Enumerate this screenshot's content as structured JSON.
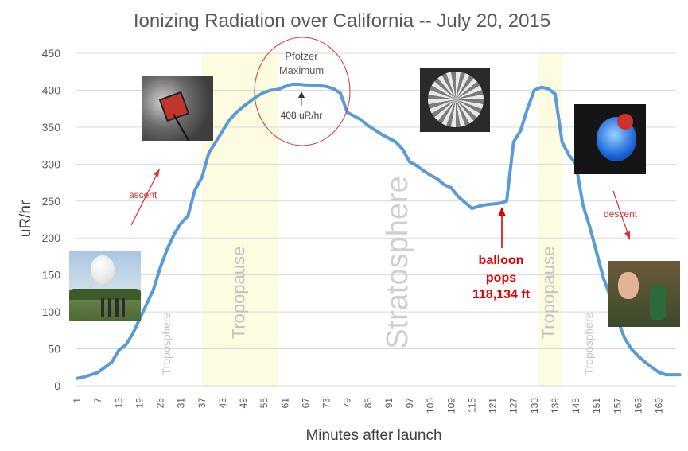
{
  "chart_data": {
    "type": "line",
    "title": "Ionizing Radiation over California -- July 20, 2015",
    "xlabel": "Minutes after launch",
    "ylabel": "uR/hr",
    "ylim": [
      0,
      450
    ],
    "yticks": [
      "0",
      "50",
      "100",
      "150",
      "200",
      "250",
      "300",
      "350",
      "400",
      "450"
    ],
    "xticks": [
      "1",
      "7",
      "13",
      "19",
      "25",
      "31",
      "37",
      "43",
      "49",
      "55",
      "61",
      "67",
      "73",
      "79",
      "85",
      "91",
      "97",
      "103",
      "109",
      "115",
      "121",
      "127",
      "133",
      "139",
      "145",
      "151",
      "157",
      "163",
      "169"
    ],
    "xlim": [
      1,
      175
    ],
    "grid": true,
    "line_color": "#5B9BD5",
    "regions": [
      {
        "label": "Troposphere",
        "x": 27,
        "fill": false
      },
      {
        "label": "Tropopause",
        "from": 37,
        "to": 59,
        "fill": true
      },
      {
        "label": "Stratosphere",
        "x": 94,
        "fill": false
      },
      {
        "label": "Tropopause",
        "from": 134,
        "to": 141,
        "fill": true
      },
      {
        "label": "Troposphere",
        "x": 149,
        "fill": false
      }
    ],
    "annotations": {
      "pfotzer_line1": "Pfotzer",
      "pfotzer_line2": "Maximum",
      "peak_value": "408 uR/hr",
      "ascent": "ascent",
      "descent": "descent",
      "pops_line1": "balloon",
      "pops_line2": "pops",
      "pops_line3": "118,134 ft"
    },
    "series": [
      {
        "x": [
          1,
          3,
          5,
          7,
          9,
          11,
          13,
          15,
          17,
          19,
          21,
          23,
          25,
          27,
          29,
          31,
          33,
          35,
          37,
          39,
          41,
          43,
          45,
          47,
          49,
          51,
          53,
          55,
          57,
          59,
          61,
          63,
          65,
          67,
          69,
          71,
          73,
          75,
          77,
          79,
          81,
          83,
          85,
          87,
          89,
          91,
          93,
          95,
          97,
          99,
          101,
          103,
          105,
          107,
          109,
          111,
          113,
          115,
          117,
          119,
          121,
          123,
          125,
          127,
          129,
          131,
          133,
          135,
          137,
          139,
          141,
          143,
          145,
          147,
          149,
          151,
          153,
          155,
          157,
          159,
          161,
          163,
          165,
          167,
          169,
          171,
          173,
          175
        ],
        "values": [
          10,
          12,
          15,
          18,
          25,
          32,
          48,
          55,
          70,
          90,
          110,
          130,
          160,
          185,
          205,
          220,
          230,
          265,
          282,
          315,
          330,
          345,
          360,
          370,
          378,
          385,
          392,
          397,
          400,
          401,
          405,
          408,
          408,
          407,
          407,
          406,
          405,
          402,
          396,
          370,
          365,
          360,
          352,
          346,
          340,
          335,
          330,
          320,
          303,
          298,
          291,
          285,
          280,
          272,
          268,
          256,
          248,
          240,
          243,
          245,
          246,
          247,
          250,
          330,
          345,
          375,
          400,
          404,
          402,
          395,
          330,
          312,
          300,
          245,
          215,
          180,
          145,
          120,
          90,
          65,
          50,
          40,
          32,
          25,
          18,
          15,
          15,
          15
        ]
      }
    ]
  }
}
